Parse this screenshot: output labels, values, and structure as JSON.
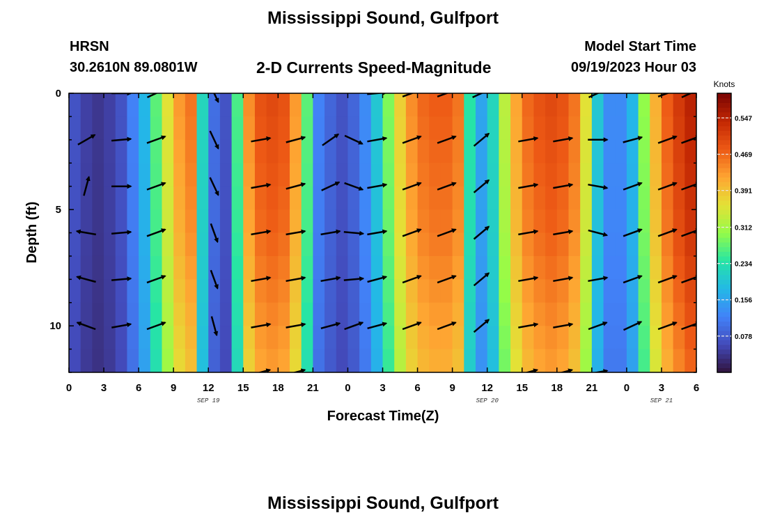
{
  "page": {
    "title": "Mississippi Sound, Gulfport",
    "title_repeat": "Mississippi Sound, Gulfport",
    "station": "HRSN",
    "coords": "30.2610N  89.0801W",
    "subtitle": "2-D Currents Speed-Magnitude",
    "model_start_label": "Model Start Time",
    "model_start_value": "09/19/2023 Hour 03"
  },
  "chart_data": {
    "type": "heatmap",
    "xlabel": "Forecast Time(Z)",
    "ylabel": "Depth (ft)",
    "colorbar_label": "Knots",
    "colorbar_ticks": [
      0.078,
      0.156,
      0.234,
      0.312,
      0.391,
      0.469,
      0.547
    ],
    "colorbar_range": [
      0,
      0.6
    ],
    "x_hours_range": [
      0,
      54
    ],
    "x_tick_labels": [
      "0",
      "3",
      "6",
      "9",
      "12",
      "15",
      "18",
      "21",
      "0",
      "3",
      "6",
      "9",
      "12",
      "15",
      "18",
      "21",
      "0",
      "3",
      "6"
    ],
    "date_labels": [
      {
        "text": "SEP 19",
        "hour": 12
      },
      {
        "text": "SEP 20",
        "hour": 36
      },
      {
        "text": "SEP 21",
        "hour": 51
      }
    ],
    "ylim": [
      0,
      12
    ],
    "y_tick_labels": [
      0,
      5,
      10
    ],
    "time_hours": [
      0,
      1,
      2,
      3,
      4,
      5,
      6,
      7,
      8,
      9,
      10,
      11,
      12,
      13,
      14,
      15,
      16,
      17,
      18,
      19,
      20,
      21,
      22,
      23,
      24,
      25,
      26,
      27,
      28,
      29,
      30,
      31,
      32,
      33,
      34,
      35,
      36,
      37,
      38,
      39,
      40,
      41,
      42,
      43,
      44,
      45,
      46,
      47,
      48,
      49,
      50,
      51,
      52,
      53
    ],
    "surface_speed_knots": [
      0.07,
      0.05,
      0.04,
      0.05,
      0.07,
      0.12,
      0.18,
      0.27,
      0.36,
      0.43,
      0.46,
      0.22,
      0.1,
      0.07,
      0.26,
      0.44,
      0.49,
      0.5,
      0.49,
      0.43,
      0.27,
      0.12,
      0.09,
      0.07,
      0.09,
      0.13,
      0.2,
      0.29,
      0.38,
      0.44,
      0.47,
      0.48,
      0.48,
      0.46,
      0.24,
      0.16,
      0.22,
      0.33,
      0.42,
      0.47,
      0.49,
      0.5,
      0.49,
      0.46,
      0.36,
      0.2,
      0.13,
      0.13,
      0.18,
      0.3,
      0.41,
      0.48,
      0.52,
      0.55
    ],
    "depth_factors": [
      {
        "depth_ft": 0,
        "factor": 1.0
      },
      {
        "depth_ft": 6,
        "factor": 0.95
      },
      {
        "depth_ft": 12,
        "factor": 0.85
      }
    ],
    "vector_depths_ft": [
      0,
      2,
      4,
      6,
      8,
      10,
      12
    ],
    "vectors": [
      {
        "hour": 1.5,
        "angles_deg": [
          null,
          30,
          75,
          170,
          165,
          160,
          null
        ]
      },
      {
        "hour": 4.5,
        "angles_deg": [
          0,
          5,
          0,
          5,
          5,
          10,
          null
        ]
      },
      {
        "hour": 7.5,
        "angles_deg": [
          25,
          20,
          20,
          20,
          20,
          20,
          null
        ]
      },
      {
        "hour": 12.5,
        "angles_deg": [
          -65,
          -65,
          -65,
          -70,
          -70,
          -75,
          null
        ]
      },
      {
        "hour": 16.5,
        "angles_deg": [
          null,
          10,
          10,
          10,
          10,
          10,
          15
        ]
      },
      {
        "hour": 19.5,
        "angles_deg": [
          null,
          15,
          15,
          10,
          10,
          10,
          15
        ]
      },
      {
        "hour": 22.5,
        "angles_deg": [
          null,
          35,
          25,
          10,
          10,
          15,
          null
        ]
      },
      {
        "hour": 24.5,
        "angles_deg": [
          null,
          -25,
          -20,
          -5,
          5,
          20,
          null
        ]
      },
      {
        "hour": 26.5,
        "angles_deg": [
          5,
          10,
          10,
          10,
          15,
          15,
          null
        ]
      },
      {
        "hour": 29.5,
        "angles_deg": [
          20,
          20,
          20,
          20,
          20,
          20,
          null
        ]
      },
      {
        "hour": 32.5,
        "angles_deg": [
          20,
          20,
          20,
          20,
          20,
          20,
          null
        ]
      },
      {
        "hour": 35.5,
        "angles_deg": [
          25,
          40,
          40,
          40,
          40,
          40,
          null
        ]
      },
      {
        "hour": 39.5,
        "angles_deg": [
          null,
          10,
          10,
          10,
          10,
          10,
          15
        ]
      },
      {
        "hour": 42.5,
        "angles_deg": [
          null,
          10,
          10,
          10,
          10,
          10,
          15
        ]
      },
      {
        "hour": 45.5,
        "angles_deg": [
          25,
          0,
          -10,
          -15,
          10,
          20,
          10
        ]
      },
      {
        "hour": 48.5,
        "angles_deg": [
          null,
          15,
          20,
          20,
          20,
          25,
          null
        ]
      },
      {
        "hour": 51.5,
        "angles_deg": [
          20,
          20,
          20,
          20,
          20,
          20,
          null
        ]
      },
      {
        "hour": 53.5,
        "angles_deg": [
          25,
          20,
          20,
          20,
          20,
          20,
          null
        ]
      }
    ],
    "arrow_color": "#000000"
  }
}
